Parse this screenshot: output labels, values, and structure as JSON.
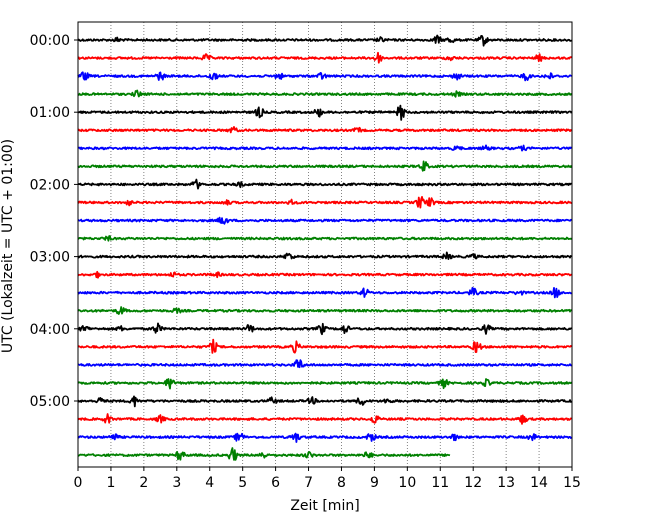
{
  "chart_data": {
    "type": "line",
    "title": "",
    "xlabel": "Zeit  [min]",
    "ylabel": "UTC (Lokalzeit = UTC + 01:00)",
    "xlim": [
      0,
      15
    ],
    "x_ticks": [
      "0",
      "1",
      "2",
      "3",
      "4",
      "5",
      "6",
      "7",
      "8",
      "9",
      "10",
      "11",
      "12",
      "13",
      "14",
      "15"
    ],
    "y_ticks": [
      "00:00",
      "01:00",
      "02:00",
      "03:00",
      "04:00",
      "05:00"
    ],
    "grid": "vertical-dotted",
    "line_colors": [
      "#000000",
      "#ff0000",
      "#0000ff",
      "#008000"
    ],
    "series": [
      {
        "row": "00:00",
        "end_min": 15,
        "events": [
          [
            1.2,
            1.0
          ],
          [
            9.2,
            1.0
          ],
          [
            10.9,
            2.0
          ],
          [
            11.3,
            1.5
          ],
          [
            12.3,
            2.5
          ]
        ]
      },
      {
        "row": "00:15",
        "end_min": 15,
        "events": [
          [
            3.9,
            1.5
          ],
          [
            9.1,
            2.5
          ],
          [
            11.3,
            1.0
          ],
          [
            14.0,
            1.5
          ]
        ]
      },
      {
        "row": "00:30",
        "end_min": 15,
        "events": [
          [
            0.2,
            2.0
          ],
          [
            2.5,
            2.0
          ],
          [
            4.1,
            2.0
          ],
          [
            6.1,
            1.5
          ],
          [
            7.4,
            1.5
          ],
          [
            11.5,
            1.5
          ],
          [
            13.6,
            2.0
          ],
          [
            14.3,
            1.5
          ]
        ]
      },
      {
        "row": "00:45",
        "end_min": 15,
        "events": [
          [
            1.8,
            1.5
          ],
          [
            11.5,
            1.0
          ]
        ]
      },
      {
        "row": "01:00",
        "end_min": 15,
        "events": [
          [
            5.5,
            2.5
          ],
          [
            7.3,
            2.0
          ],
          [
            9.8,
            3.5
          ]
        ]
      },
      {
        "row": "01:15",
        "end_min": 15,
        "events": [
          [
            4.7,
            1.5
          ],
          [
            8.5,
            1.0
          ]
        ]
      },
      {
        "row": "01:30",
        "end_min": 15,
        "events": [
          [
            11.5,
            1.0
          ],
          [
            12.4,
            1.0
          ],
          [
            13.5,
            1.0
          ]
        ]
      },
      {
        "row": "01:45",
        "end_min": 15,
        "events": [
          [
            10.5,
            2.5
          ]
        ]
      },
      {
        "row": "02:00",
        "end_min": 15,
        "events": [
          [
            3.6,
            2.0
          ],
          [
            4.9,
            1.0
          ]
        ]
      },
      {
        "row": "02:15",
        "end_min": 15,
        "events": [
          [
            1.5,
            1.5
          ],
          [
            4.5,
            1.0
          ],
          [
            6.5,
            1.0
          ],
          [
            10.4,
            3.0
          ],
          [
            10.7,
            2.0
          ]
        ]
      },
      {
        "row": "02:30",
        "end_min": 15,
        "events": [
          [
            4.4,
            2.5
          ]
        ]
      },
      {
        "row": "02:45",
        "end_min": 15,
        "events": [
          [
            0.9,
            1.0
          ]
        ]
      },
      {
        "row": "03:00",
        "end_min": 15,
        "events": [
          [
            6.4,
            2.0
          ],
          [
            11.2,
            1.5
          ],
          [
            12.0,
            1.0
          ]
        ]
      },
      {
        "row": "03:15",
        "end_min": 15,
        "events": [
          [
            0.6,
            1.0
          ],
          [
            2.9,
            1.0
          ],
          [
            4.2,
            1.0
          ]
        ]
      },
      {
        "row": "03:30",
        "end_min": 15,
        "events": [
          [
            8.7,
            2.0
          ],
          [
            12.0,
            2.0
          ],
          [
            13.4,
            1.0
          ],
          [
            14.5,
            2.5
          ]
        ]
      },
      {
        "row": "03:45",
        "end_min": 15,
        "events": [
          [
            1.3,
            2.0
          ],
          [
            3.0,
            1.0
          ]
        ]
      },
      {
        "row": "04:00",
        "end_min": 15,
        "events": [
          [
            0.2,
            1.5
          ],
          [
            1.3,
            1.0
          ],
          [
            2.4,
            2.5
          ],
          [
            5.2,
            2.0
          ],
          [
            7.4,
            2.5
          ],
          [
            8.1,
            2.0
          ],
          [
            12.4,
            2.0
          ]
        ]
      },
      {
        "row": "04:15",
        "end_min": 15,
        "events": [
          [
            4.1,
            3.0
          ],
          [
            6.6,
            2.5
          ],
          [
            12.1,
            3.0
          ]
        ]
      },
      {
        "row": "04:30",
        "end_min": 15,
        "events": [
          [
            6.7,
            3.0
          ]
        ]
      },
      {
        "row": "04:45",
        "end_min": 15,
        "events": [
          [
            2.8,
            3.0
          ],
          [
            11.1,
            2.0
          ],
          [
            12.4,
            1.5
          ]
        ]
      },
      {
        "row": "05:00",
        "end_min": 15,
        "events": [
          [
            0.7,
            1.5
          ],
          [
            1.7,
            2.5
          ],
          [
            5.9,
            1.5
          ],
          [
            7.1,
            1.5
          ],
          [
            8.6,
            2.0
          ],
          [
            9.4,
            1.0
          ]
        ]
      },
      {
        "row": "05:15",
        "end_min": 15,
        "events": [
          [
            0.9,
            2.0
          ],
          [
            2.5,
            1.5
          ],
          [
            9.0,
            2.0
          ],
          [
            13.5,
            2.0
          ]
        ]
      },
      {
        "row": "05:30",
        "end_min": 15,
        "events": [
          [
            1.1,
            1.5
          ],
          [
            4.9,
            2.5
          ],
          [
            6.6,
            2.5
          ],
          [
            8.9,
            2.0
          ],
          [
            11.4,
            1.5
          ],
          [
            13.8,
            1.5
          ]
        ]
      },
      {
        "row": "05:45",
        "end_min": 11.3,
        "events": [
          [
            3.1,
            2.5
          ],
          [
            4.7,
            3.5
          ],
          [
            5.6,
            1.5
          ],
          [
            7.0,
            1.5
          ],
          [
            8.8,
            1.5
          ]
        ]
      }
    ]
  }
}
